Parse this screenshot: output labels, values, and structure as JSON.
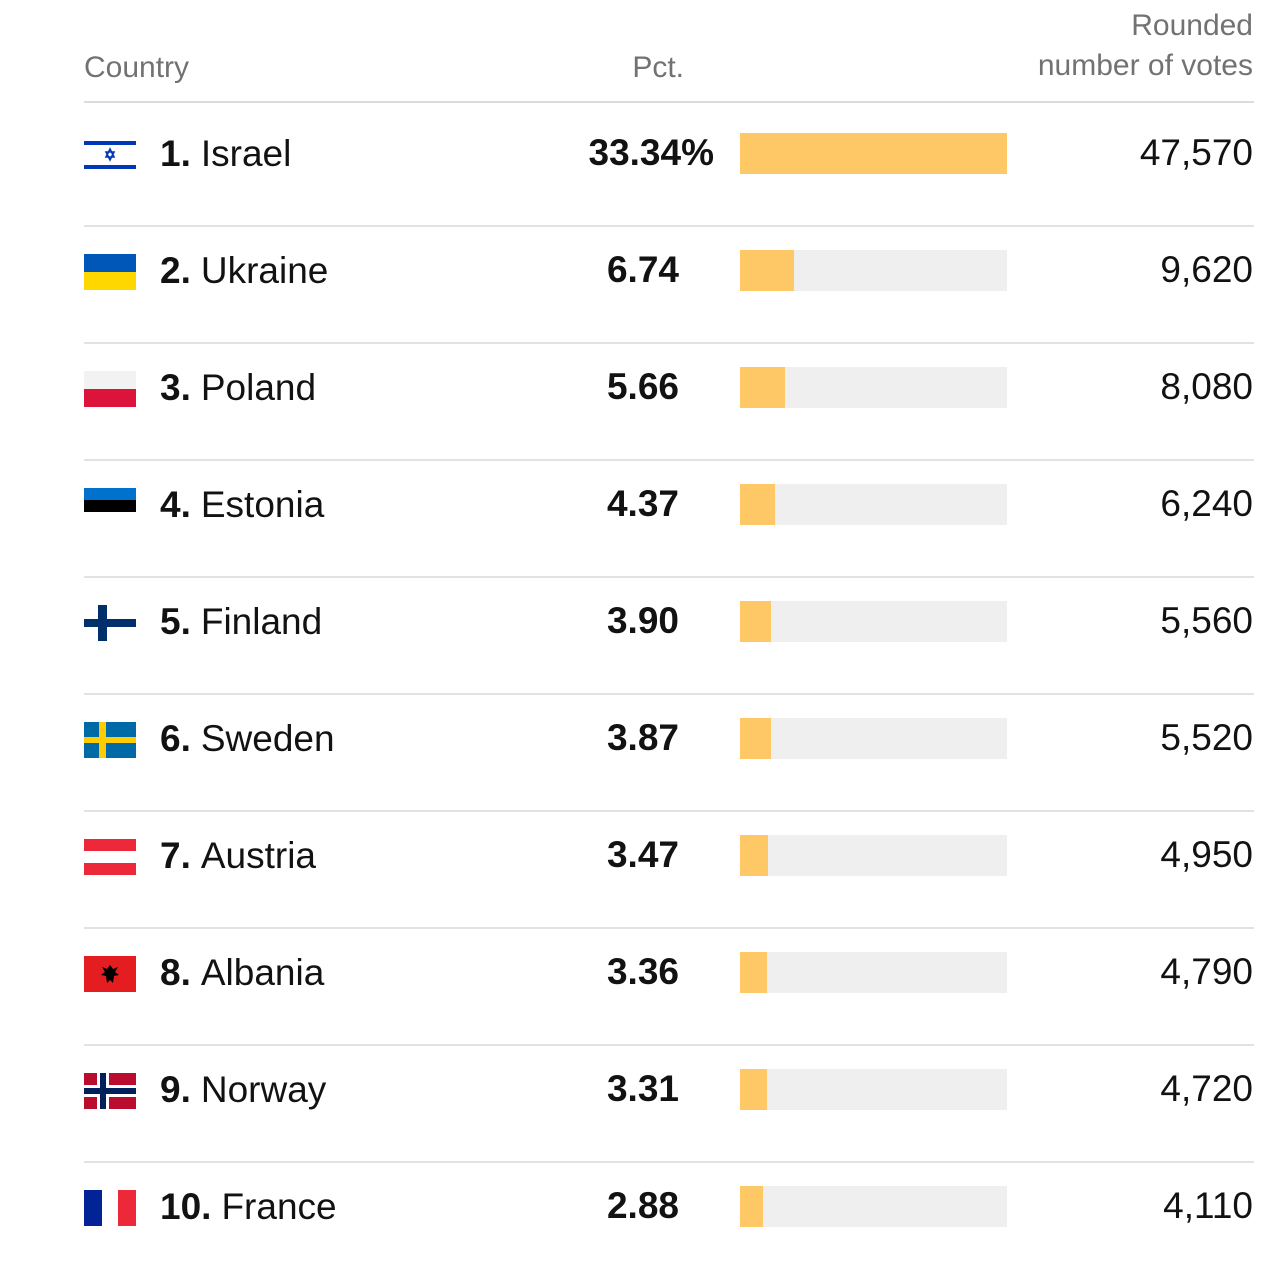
{
  "headers": {
    "country": "Country",
    "pct": "Pct.",
    "votes_line1": "Rounded",
    "votes_line2": "number of votes"
  },
  "colors": {
    "bar": "#fdc865",
    "track": "#efefef"
  },
  "chart_data": {
    "type": "table",
    "columns": [
      "Country",
      "Pct.",
      "Rounded number of votes"
    ],
    "rows": [
      {
        "rank": "1.",
        "country": "Israel",
        "flag": "israel-flag-icon",
        "pct": 33.34,
        "pct_label": "33.34%",
        "votes": "47,570"
      },
      {
        "rank": "2.",
        "country": "Ukraine",
        "flag": "ukraine-flag-icon",
        "pct": 6.74,
        "pct_label": "6.74",
        "votes": "9,620"
      },
      {
        "rank": "3.",
        "country": "Poland",
        "flag": "poland-flag-icon",
        "pct": 5.66,
        "pct_label": "5.66",
        "votes": "8,080"
      },
      {
        "rank": "4.",
        "country": "Estonia",
        "flag": "estonia-flag-icon",
        "pct": 4.37,
        "pct_label": "4.37",
        "votes": "6,240"
      },
      {
        "rank": "5.",
        "country": "Finland",
        "flag": "finland-flag-icon",
        "pct": 3.9,
        "pct_label": "3.90",
        "votes": "5,560"
      },
      {
        "rank": "6.",
        "country": "Sweden",
        "flag": "sweden-flag-icon",
        "pct": 3.87,
        "pct_label": "3.87",
        "votes": "5,520"
      },
      {
        "rank": "7.",
        "country": "Austria",
        "flag": "austria-flag-icon",
        "pct": 3.47,
        "pct_label": "3.47",
        "votes": "4,950"
      },
      {
        "rank": "8.",
        "country": "Albania",
        "flag": "albania-flag-icon",
        "pct": 3.36,
        "pct_label": "3.36",
        "votes": "4,790"
      },
      {
        "rank": "9.",
        "country": "Norway",
        "flag": "norway-flag-icon",
        "pct": 3.31,
        "pct_label": "3.31",
        "votes": "4,720"
      },
      {
        "rank": "10.",
        "country": "France",
        "flag": "france-flag-icon",
        "pct": 2.88,
        "pct_label": "2.88",
        "votes": "4,110"
      }
    ],
    "bar_max": 33.34
  }
}
